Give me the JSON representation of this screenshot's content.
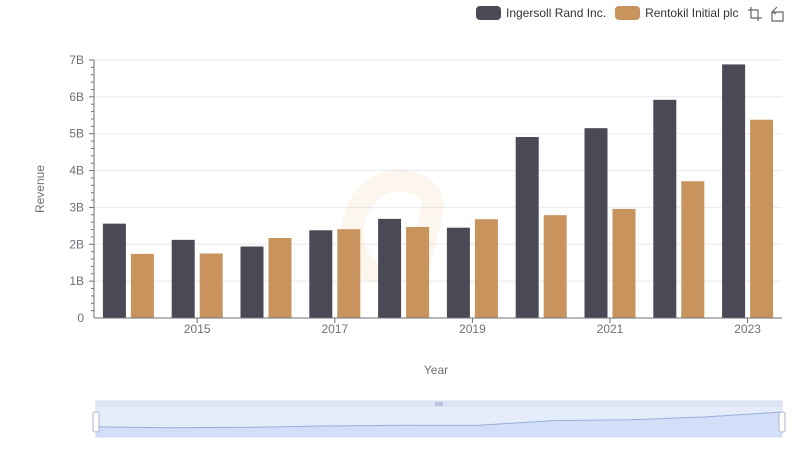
{
  "legend": {
    "items": [
      {
        "label": "Ingersoll Rand Inc.",
        "color": "#4a4a56"
      },
      {
        "label": "Rentokil Initial plc",
        "color": "#c8935d"
      }
    ]
  },
  "toolbox": {
    "icons": [
      "zoom-icon",
      "restore-icon"
    ]
  },
  "chart_data": {
    "type": "bar",
    "title": "",
    "xlabel": "Year",
    "ylabel": "Revenue",
    "x": [
      2014,
      2015,
      2016,
      2017,
      2018,
      2019,
      2020,
      2021,
      2022,
      2023
    ],
    "x_tick_labels": [
      "2015",
      "2017",
      "2019",
      "2021",
      "2023"
    ],
    "y_tick_labels": [
      "0",
      "1B",
      "2B",
      "3B",
      "4B",
      "5B",
      "6B",
      "7B"
    ],
    "ylim": [
      0,
      7000000000
    ],
    "grid": true,
    "legend_position": "top-right",
    "series": [
      {
        "name": "Ingersoll Rand Inc.",
        "color": "#4a4a56",
        "values": [
          2560000000,
          2120000000,
          1940000000,
          2380000000,
          2690000000,
          2450000000,
          4910000000,
          5150000000,
          5920000000,
          6880000000
        ]
      },
      {
        "name": "Rentokil Initial plc",
        "color": "#c8935d",
        "values": [
          1740000000,
          1750000000,
          2170000000,
          2410000000,
          2470000000,
          2680000000,
          2790000000,
          2960000000,
          3710000000,
          5380000000
        ]
      }
    ]
  }
}
